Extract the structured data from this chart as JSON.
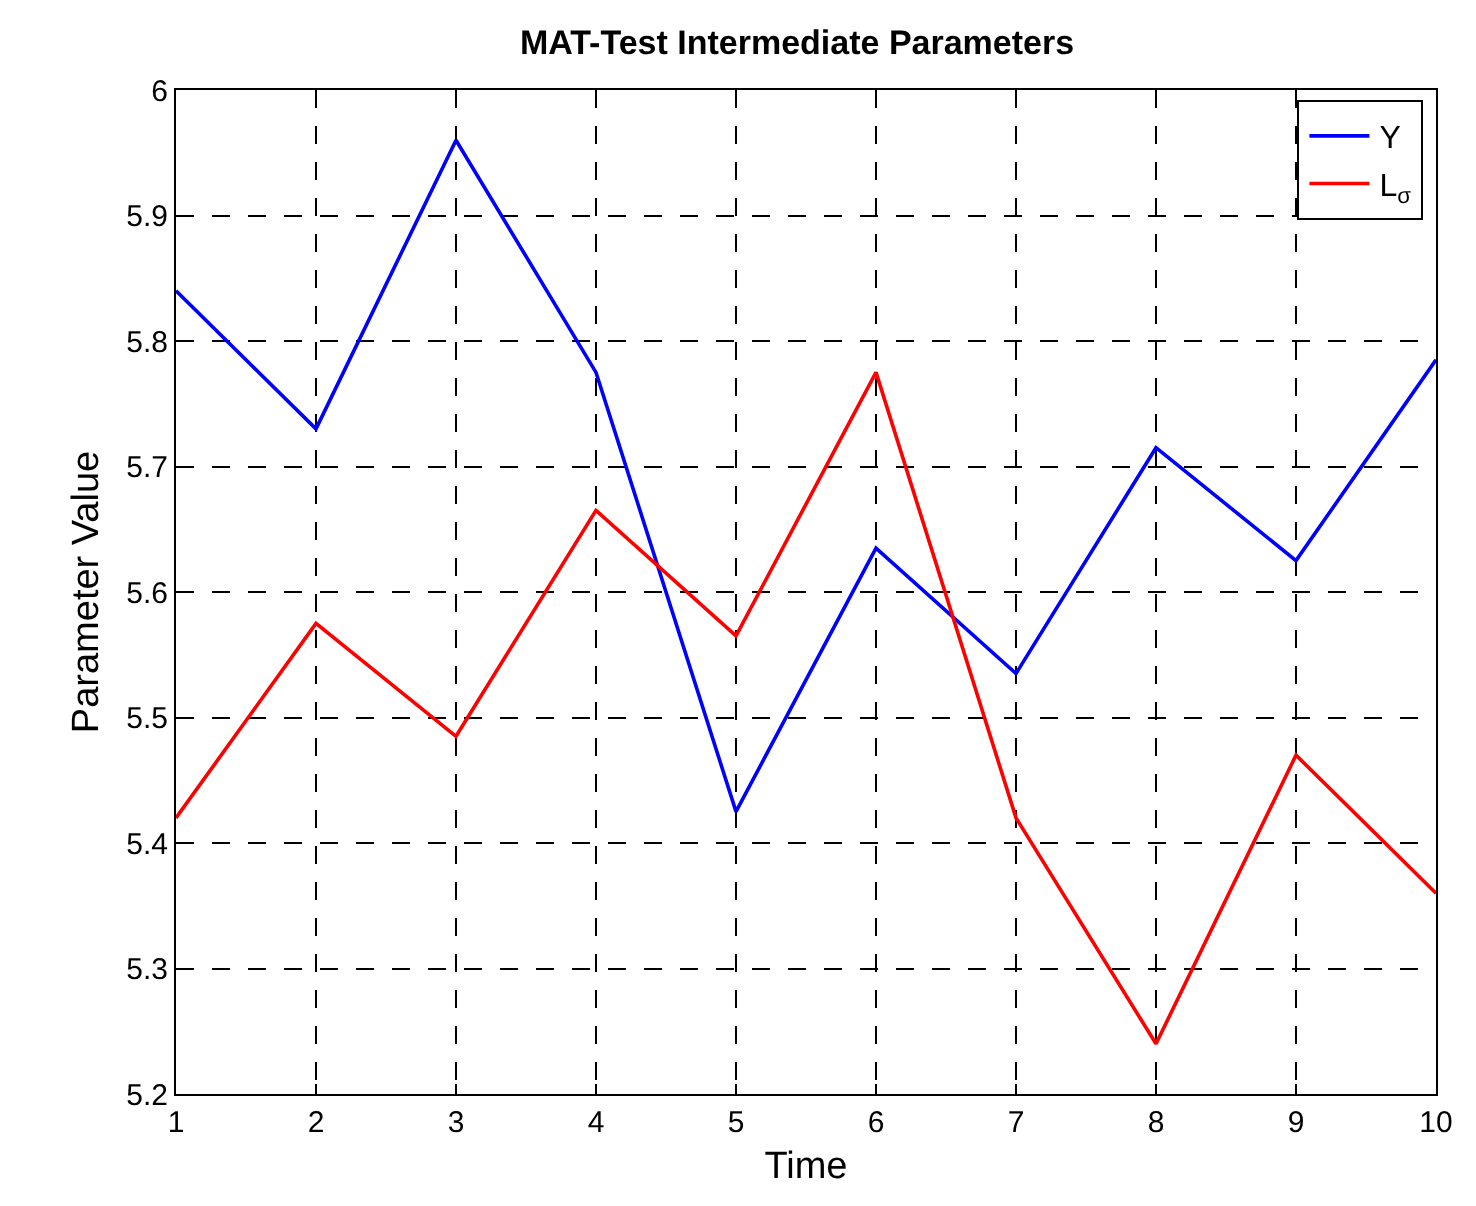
{
  "chart_data": {
    "type": "line",
    "title": "MAT-Test Intermediate Parameters",
    "xlabel": "Time",
    "ylabel": "Parameter Value",
    "x": [
      1,
      2,
      3,
      4,
      5,
      6,
      7,
      8,
      9,
      10
    ],
    "series": [
      {
        "name": "Y",
        "color": "#0000ff",
        "values": [
          5.84,
          5.73,
          5.96,
          5.775,
          5.425,
          5.635,
          5.535,
          5.715,
          5.625,
          5.785
        ]
      },
      {
        "name": "L$_{σ}$",
        "color": "#ff0000",
        "values": [
          5.42,
          5.575,
          5.485,
          5.665,
          5.565,
          5.775,
          5.42,
          5.24,
          5.47,
          5.36
        ]
      }
    ],
    "xlim": [
      1,
      10
    ],
    "xticks": [
      1,
      2,
      3,
      4,
      5,
      6,
      7,
      8,
      9,
      10
    ],
    "ylim": [
      5.2,
      6
    ],
    "yticks": [
      5.2,
      5.3,
      5.4,
      5.5,
      5.6,
      5.7,
      5.8,
      5.9,
      6
    ],
    "grid": true,
    "legend": "top right",
    "marker": "none",
    "line_style": "solid"
  }
}
